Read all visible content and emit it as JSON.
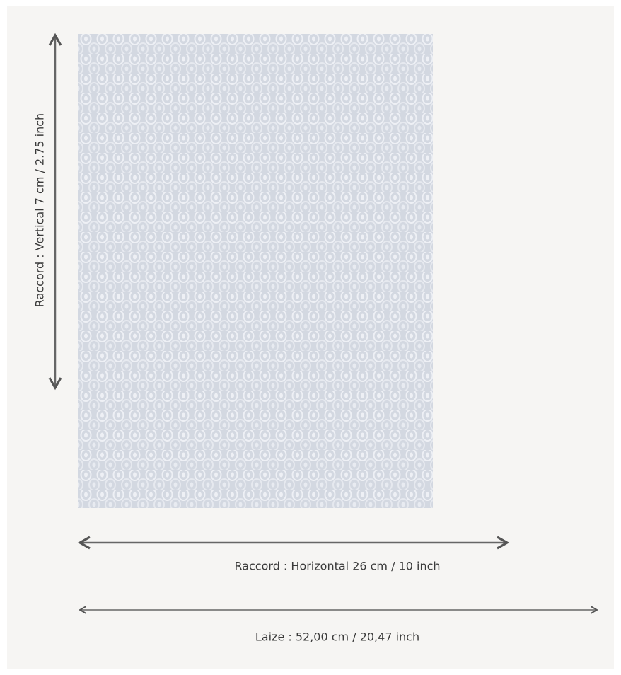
{
  "dimensions": {
    "vertical_repeat": "Raccord : Vertical 7 cm / 2.75 inch",
    "horizontal_repeat": "Raccord : Horizontal 26 cm / 10 inch",
    "width": "Laize : 52,00 cm / 20,47 inch"
  }
}
